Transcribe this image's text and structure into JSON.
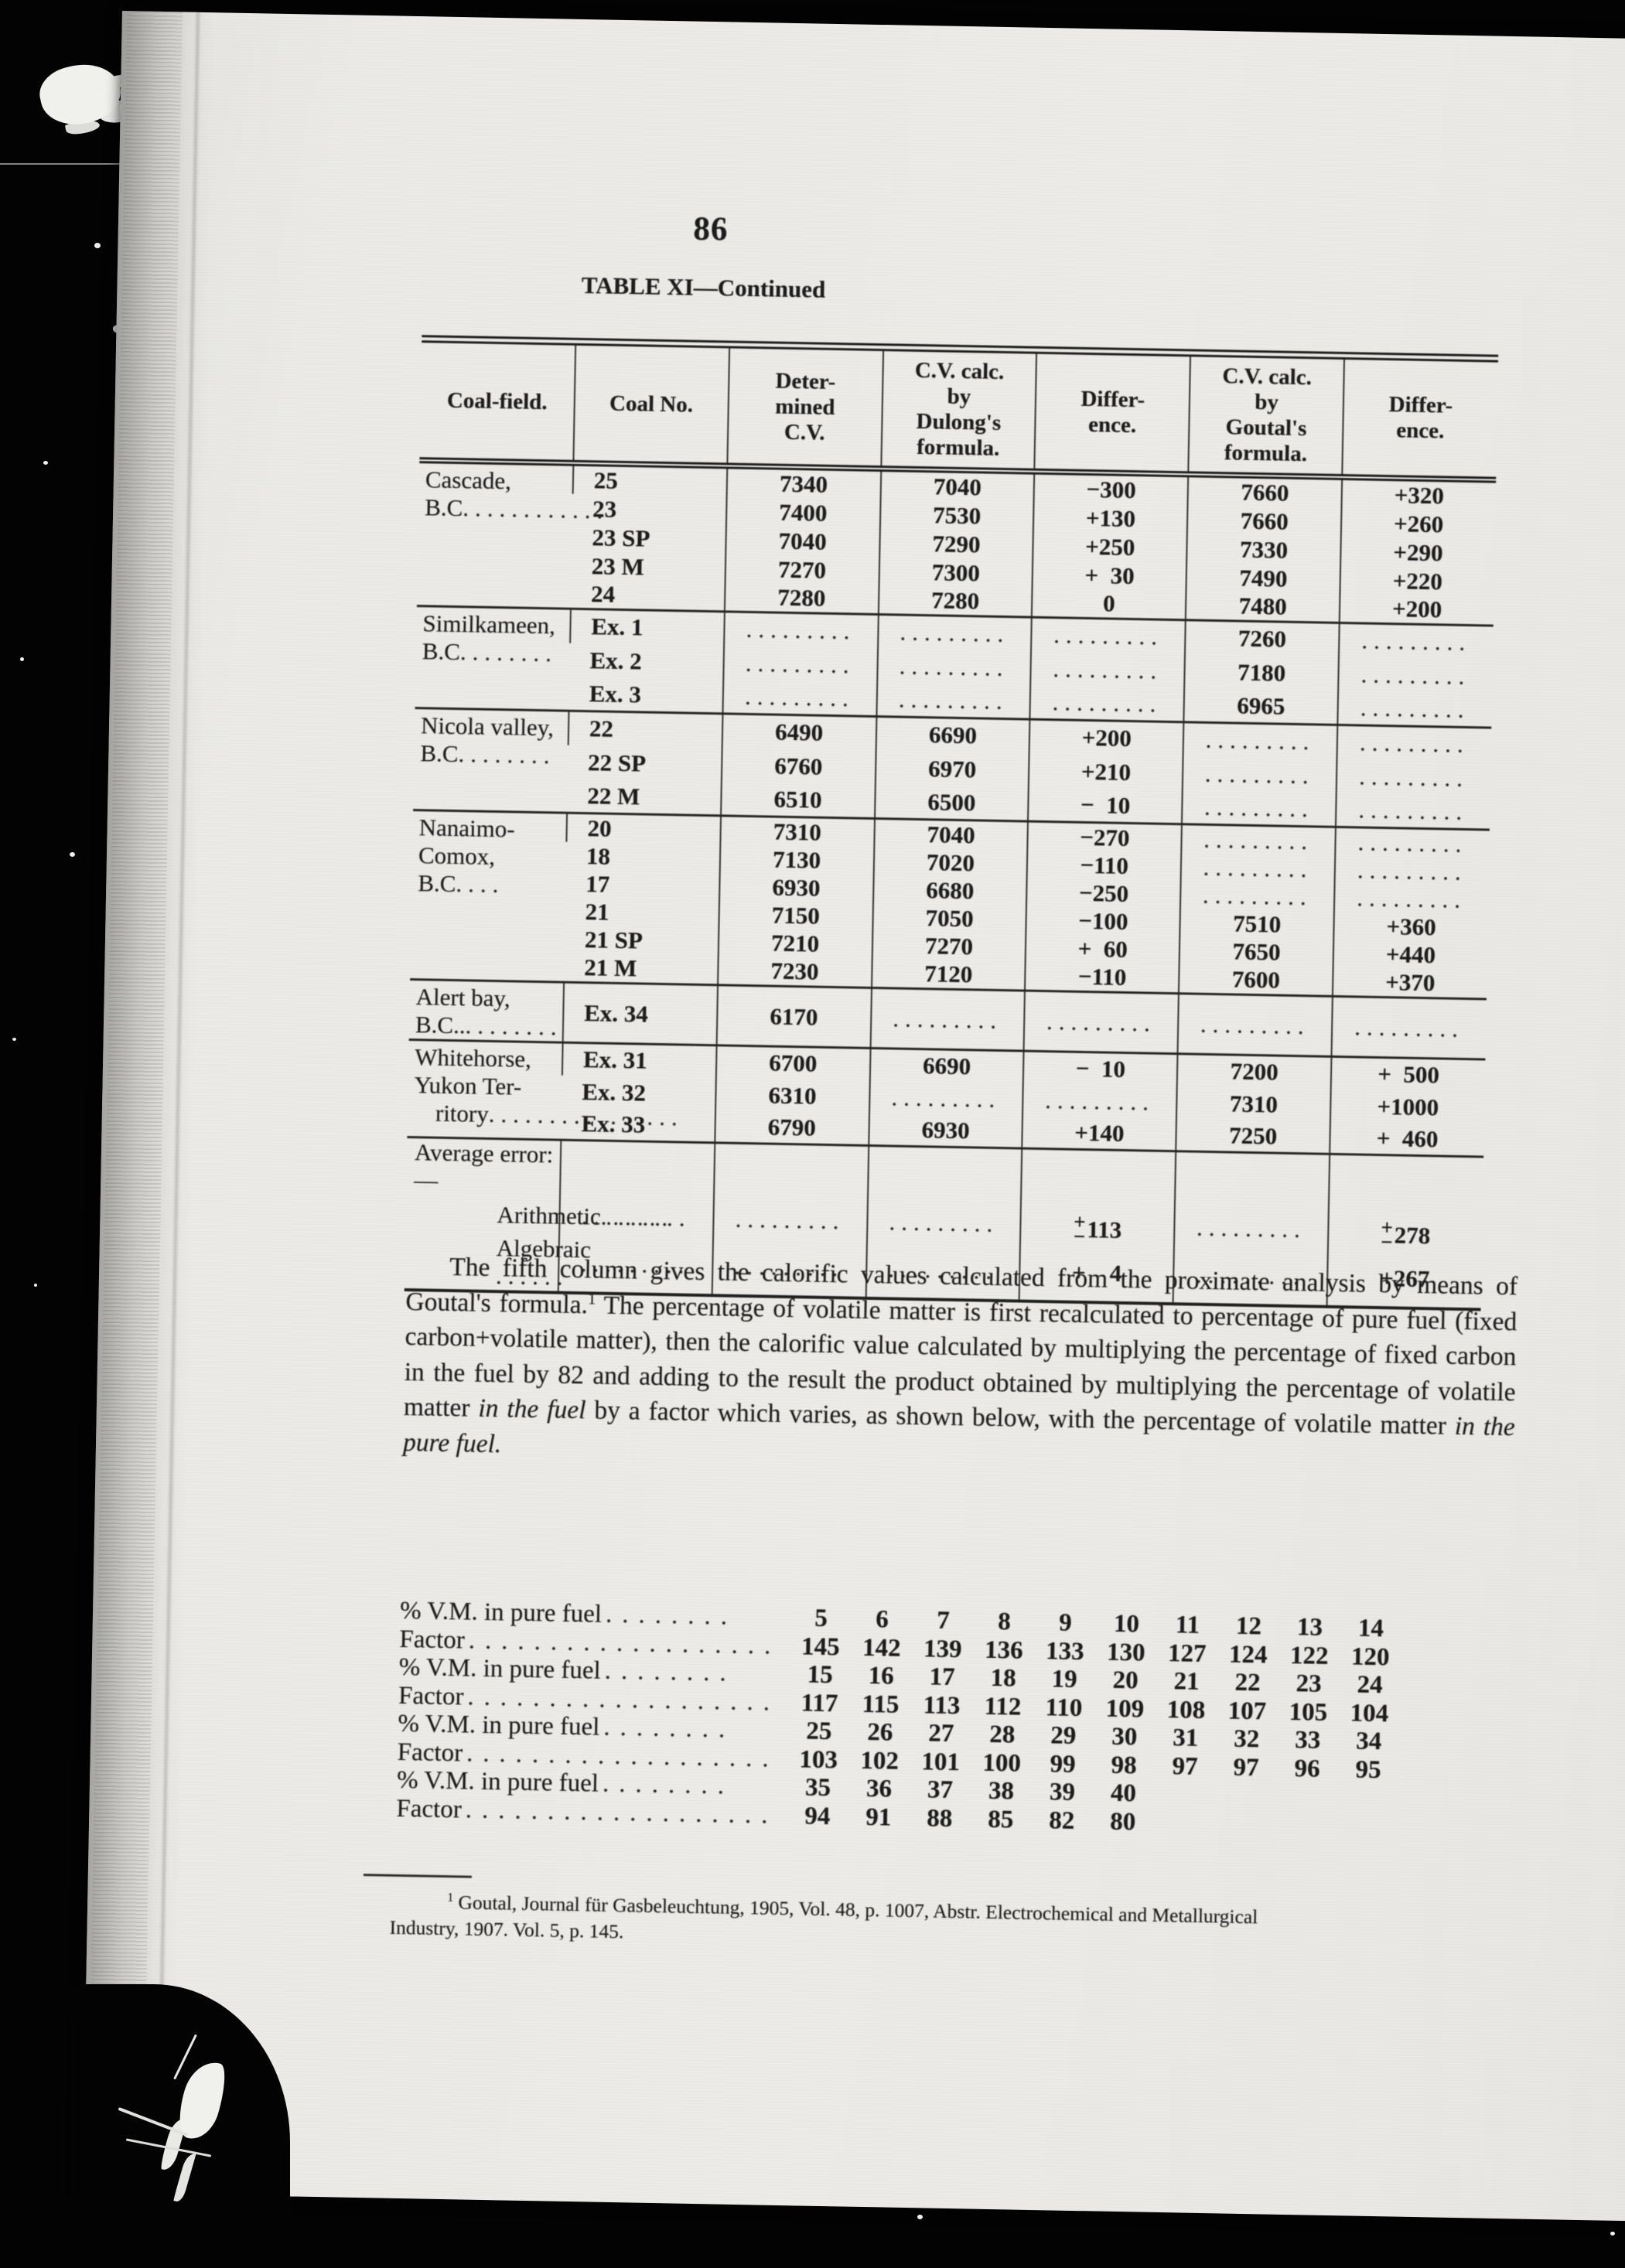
{
  "scan": {
    "background": "#030303",
    "page_color": "#ebeae6",
    "ink": "#1b1b1b"
  },
  "page_number": "86",
  "table_title": "TABLE XI—Continued",
  "table": {
    "headers": [
      {
        "lines": [
          "Coal-field."
        ]
      },
      {
        "lines": [
          "Coal No."
        ]
      },
      {
        "lines": [
          "Deter-",
          "mined",
          "C.V."
        ]
      },
      {
        "lines": [
          "C.V. calc.",
          "by",
          "Dulong's",
          "formula."
        ]
      },
      {
        "lines": [
          "Differ-",
          "ence."
        ]
      },
      {
        "lines": [
          "C.V. calc.",
          "by",
          "Goutal's",
          "formula."
        ]
      },
      {
        "lines": [
          "Differ-",
          "ence."
        ]
      }
    ],
    "leader_dots": ".........",
    "blocks": [
      {
        "label": [
          {
            "text": "Cascade, B.C",
            "dots": "............"
          }
        ],
        "rows": [
          [
            "25",
            "7340",
            "7040",
            "−300",
            "7660",
            "+320"
          ],
          [
            "23",
            "7400",
            "7530",
            "+130",
            "7660",
            "+260"
          ],
          [
            "23 SP",
            "7040",
            "7290",
            "+250",
            "7330",
            "+290"
          ],
          [
            "23 M",
            "7270",
            "7300",
            "+  30",
            "7490",
            "+220"
          ],
          [
            "24",
            "7280",
            "7280",
            "0",
            "7480",
            "+200"
          ]
        ]
      },
      {
        "label": [
          {
            "text": "Similkameen, B.C",
            "dots": "........"
          }
        ],
        "rows": [
          [
            "Ex. 1",
            "dots",
            "dots",
            "dots",
            "7260",
            "dots"
          ],
          [
            "Ex. 2",
            "dots",
            "dots",
            "dots",
            "7180",
            "dots"
          ],
          [
            "Ex. 3",
            "dots",
            "dots",
            "dots",
            "6965",
            "dots"
          ]
        ]
      },
      {
        "label": [
          {
            "text": "Nicola valley, B.C",
            "dots": "........"
          }
        ],
        "rows": [
          [
            "22",
            "6490",
            "6690",
            "+200",
            "dots",
            "dots"
          ],
          [
            "22 SP",
            "6760",
            "6970",
            "+210",
            "dots",
            "dots"
          ],
          [
            "22 M",
            "6510",
            "6500",
            "−  10",
            "dots",
            "dots"
          ]
        ]
      },
      {
        "label": [
          {
            "text": "Nanaimo-Comox, B.C",
            "dots": "...."
          }
        ],
        "rows": [
          [
            "20",
            "7310",
            "7040",
            "−270",
            "dots",
            "dots"
          ],
          [
            "18",
            "7130",
            "7020",
            "−110",
            "dots",
            "dots"
          ],
          [
            "17",
            "6930",
            "6680",
            "−250",
            "dots",
            "dots"
          ],
          [
            "21",
            "7150",
            "7050",
            "−100",
            "7510",
            "+360"
          ],
          [
            "21 SP",
            "7210",
            "7270",
            "+  60",
            "7650",
            "+440"
          ],
          [
            "21 M",
            "7230",
            "7120",
            "−110",
            "7600",
            "+370"
          ]
        ]
      },
      {
        "label": [
          {
            "text": "Alert bay, B.C..",
            "dots": "........"
          }
        ],
        "rows": [
          [
            "Ex. 34",
            "6170",
            "dots",
            "dots",
            "dots",
            "dots"
          ]
        ]
      },
      {
        "label": [
          {
            "text": "Whitehorse, Yukon Ter-",
            "dots": ""
          },
          {
            "text": "ritory",
            "dots": "................"
          }
        ],
        "rows": [
          [
            "Ex. 31",
            "6700",
            "6690",
            "−  10",
            "7200",
            "+  500"
          ],
          [
            "Ex. 32",
            "6310",
            "dots",
            "dots",
            "7310",
            "+1000"
          ],
          [
            "Ex. 33",
            "6790",
            "6930",
            "+140",
            "7250",
            "+  460"
          ]
        ]
      }
    ],
    "average": {
      "title": "Average error:—",
      "rows": [
        {
          "label": "Arithmetic",
          "dots": "......",
          "cells": [
            "dots",
            "dots",
            "dots",
            {
              "pm": "113"
            },
            "dots",
            {
              "pm": "278"
            }
          ]
        },
        {
          "label": "Algebraic ",
          "dots": "......",
          "cells": [
            "dots",
            "dots",
            "dots",
            "+    4",
            "dots",
            "+267"
          ]
        }
      ]
    }
  },
  "paragraph": {
    "part1": "The fifth column gives the calorific values calculated from the proximate analysis by means of Goutal's formula.",
    "fn_marker": "1",
    "part2": "  The percentage of volatile matter is first recalculated to percentage of pure fuel (fixed carbon+volatile matter), then the calorific value calculated by multiplying the percentage of fixed carbon in the fuel by 82 and adding to the result the product obtained by multiplying the percentage of volatile matter ",
    "italic1": "in the fuel",
    "part3": " by a factor which varies, as shown below, with the percentage of volatile matter ",
    "italic2": "in the pure fuel."
  },
  "factor_table": {
    "rows": [
      {
        "label": "% V.M. in pure fuel",
        "dots": "........",
        "values": [
          "5",
          "6",
          "7",
          "8",
          "9",
          "10",
          "11",
          "12",
          "13",
          "14"
        ]
      },
      {
        "label": "Factor",
        "dots": "...................",
        "values": [
          "145",
          "142",
          "139",
          "136",
          "133",
          "130",
          "127",
          "124",
          "122",
          "120"
        ]
      },
      {
        "label": "% V.M. in pure fuel",
        "dots": "........",
        "values": [
          "15",
          "16",
          "17",
          "18",
          "19",
          "20",
          "21",
          "22",
          "23",
          "24"
        ]
      },
      {
        "label": "Factor",
        "dots": "...................",
        "values": [
          "117",
          "115",
          "113",
          "112",
          "110",
          "109",
          "108",
          "107",
          "105",
          "104"
        ]
      },
      {
        "label": "% V.M. in pure fuel",
        "dots": "........",
        "values": [
          "25",
          "26",
          "27",
          "28",
          "29",
          "30",
          "31",
          "32",
          "33",
          "34"
        ]
      },
      {
        "label": "Factor",
        "dots": "...................",
        "values": [
          "103",
          "102",
          "101",
          "100",
          "99",
          "98",
          "97",
          "97",
          "96",
          "95"
        ]
      },
      {
        "label": "% V.M. in pure fuel",
        "dots": "........",
        "values": [
          "35",
          "36",
          "37",
          "38",
          "39",
          "40"
        ]
      },
      {
        "label": "Factor",
        "dots": "...................",
        "values": [
          "94",
          "91",
          "88",
          "85",
          "82",
          "80"
        ]
      }
    ]
  },
  "footnote": {
    "marker": "1",
    "line1": "Goutal, Journal für Gasbeleuchtung, 1905, Vol. 48, p. 1007, Abstr. Electrochemical and Metallurgical",
    "line2": "Industry, 1907. Vol. 5, p. 145."
  }
}
